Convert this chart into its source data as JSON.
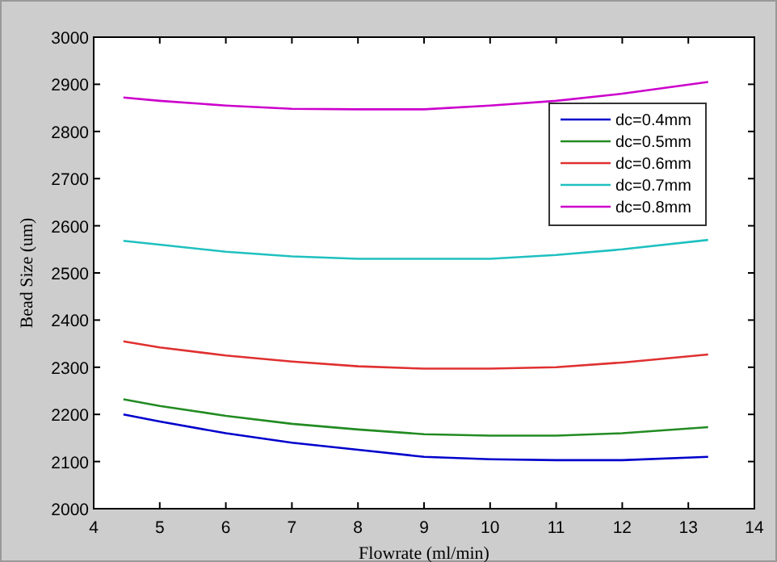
{
  "chart_data": {
    "type": "line",
    "xlabel": "Flowrate (ml/min)",
    "ylabel": "Bead Size (um)",
    "x": [
      4.45,
      5,
      6,
      7,
      8,
      9,
      10,
      11,
      12,
      13.3
    ],
    "series": [
      {
        "name": "dc=0.4mm",
        "color": "#0000cc",
        "values": [
          2200,
          2185,
          2160,
          2140,
          2125,
          2110,
          2105,
          2103,
          2103,
          2110
        ]
      },
      {
        "name": "dc=0.5mm",
        "color": "#228b22",
        "values": [
          2232,
          2218,
          2197,
          2180,
          2168,
          2158,
          2155,
          2155,
          2160,
          2173
        ]
      },
      {
        "name": "dc=0.6mm",
        "color": "#e03030",
        "values": [
          2355,
          2342,
          2325,
          2312,
          2302,
          2297,
          2297,
          2300,
          2310,
          2327
        ]
      },
      {
        "name": "dc=0.7mm",
        "color": "#20c0c0",
        "values": [
          2568,
          2560,
          2545,
          2535,
          2530,
          2530,
          2530,
          2538,
          2550,
          2570
        ]
      },
      {
        "name": "dc=0.8mm",
        "color": "#cc00cc",
        "values": [
          2872,
          2865,
          2855,
          2848,
          2847,
          2847,
          2855,
          2865,
          2880,
          2905
        ]
      }
    ],
    "xlim": [
      4,
      14
    ],
    "xticks": [
      4,
      5,
      6,
      7,
      8,
      9,
      10,
      11,
      12,
      13,
      14
    ],
    "ylim": [
      2000,
      3000
    ],
    "yticks": [
      2000,
      2100,
      2200,
      2300,
      2400,
      2500,
      2600,
      2700,
      2800,
      2900,
      3000
    ],
    "grid": false,
    "legend": "top right",
    "marker": "none",
    "line_style": "solid"
  }
}
